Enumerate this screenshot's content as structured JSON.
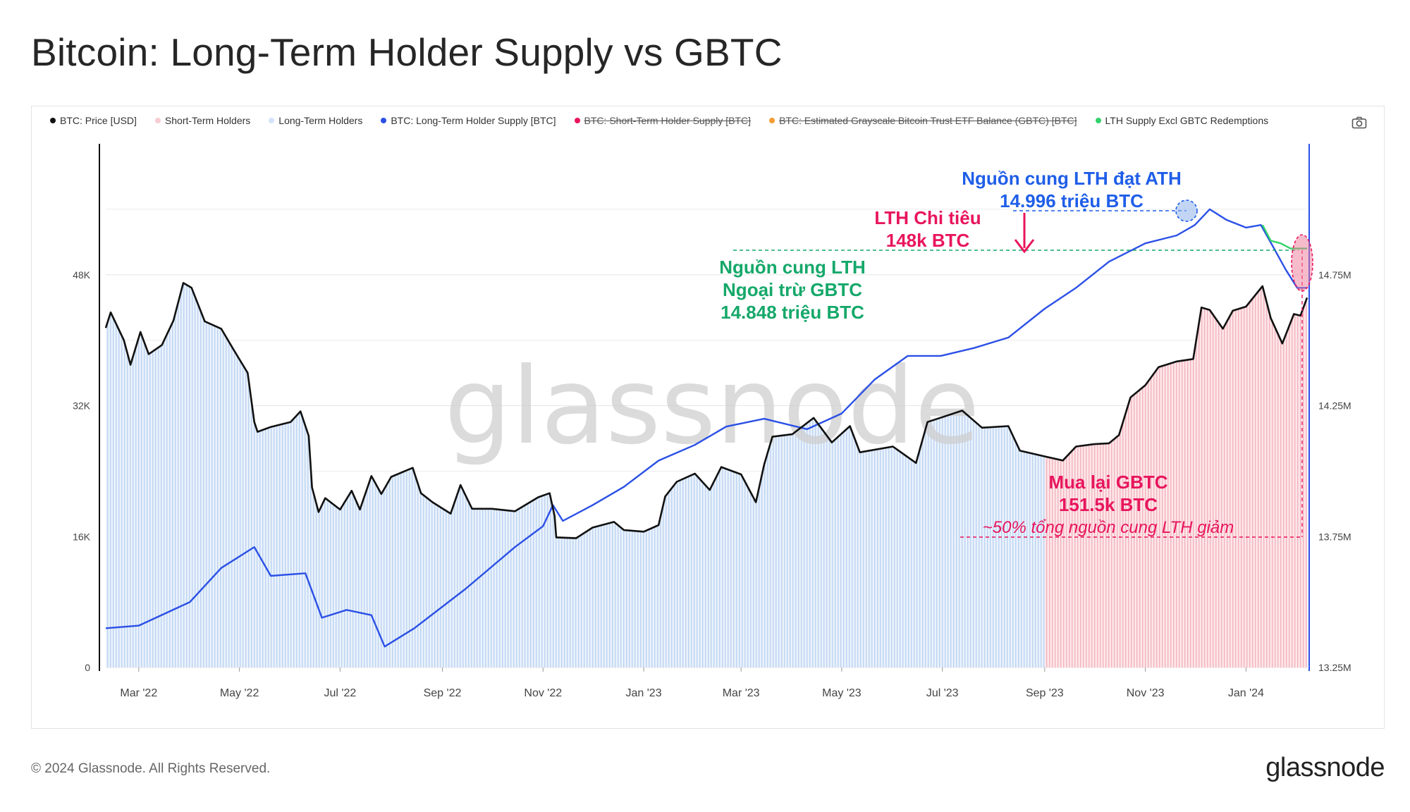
{
  "title": "Bitcoin: Long-Term Holder Supply vs GBTC",
  "footer": {
    "copyright": "© 2024 Glassnode. All Rights Reserved.",
    "brand": "glassnode"
  },
  "watermark": "glassnode",
  "icons": {
    "camera": "camera-icon"
  },
  "colors": {
    "price": "#111111",
    "lth_supply": "#2b50e6",
    "lth_excl_gbtc": "#32d36a",
    "sth_fill": "#f6cdd3",
    "lth_fill": "#d4e3f7",
    "annotation_blue": "#1f5ee8",
    "annotation_red": "#e8155d",
    "annotation_green": "#15a86a",
    "lth_spending_arrow": "#e8155d"
  },
  "legend": [
    {
      "label": "BTC: Price [USD]",
      "color": "#111111",
      "active": true
    },
    {
      "label": "Short-Term Holders",
      "color": "#f6cdd3",
      "active": true
    },
    {
      "label": "Long-Term Holders",
      "color": "#d4e3f7",
      "active": true
    },
    {
      "label": "BTC: Long-Term Holder Supply [BTC]",
      "color": "#2b50e6",
      "active": true
    },
    {
      "label": "BTC: Short-Term Holder Supply [BTC]",
      "color": "#e8155d",
      "active": false
    },
    {
      "label": "BTC: Estimated Grayscale Bitcoin Trust ETF Balance (GBTC) [BTC]",
      "color": "#f39c35",
      "active": false
    },
    {
      "label": "LTH Supply Excl GBTC Redemptions",
      "color": "#32d36a",
      "active": true
    }
  ],
  "annotations": {
    "ath_line1": "Nguồn cung LTH đạt ATH",
    "ath_line2": "14.996 triệu BTC",
    "spend_line1": "LTH Chi tiêu",
    "spend_line2": "148k BTC",
    "excl_line1": "Nguồn cung LTH",
    "excl_line2": "Ngoại trừ GBTC",
    "excl_line3": "14.848 triệu BTC",
    "gbtc_line1": "Mua lại GBTC",
    "gbtc_line2": "151.5k BTC",
    "gbtc_line3": "~50% tổng nguồn cung LTH giảm"
  },
  "chart_data": {
    "type": "line",
    "title": "Bitcoin: Long-Term Holder Supply vs GBTC",
    "x_ticks": [
      "Mar '22",
      "May '22",
      "Jul '22",
      "Sep '22",
      "Nov '22",
      "Jan '23",
      "Mar '23",
      "May '23",
      "Jul '23",
      "Sep '23",
      "Nov '23",
      "Jan '24"
    ],
    "y_left": {
      "ticks": [
        "0",
        "16K",
        "32K",
        "48K"
      ],
      "range": [
        0,
        64000
      ],
      "unit": "USD"
    },
    "y_right": {
      "ticks": [
        "13.25M",
        "13.75M",
        "14.25M",
        "14.75M"
      ],
      "range": [
        13.25,
        15.25
      ],
      "unit": "BTC (millions)"
    },
    "x_range": [
      "2022-02-09",
      "2024-02-07"
    ],
    "grid": true,
    "legend_position": "top",
    "regime_split": "2023-09-05",
    "series": [
      {
        "name": "BTC: Price [USD]",
        "axis": "left",
        "points": [
          [
            "2022-02-09",
            41500
          ],
          [
            "2022-02-12",
            43400
          ],
          [
            "2022-02-20",
            40000
          ],
          [
            "2022-02-24",
            37000
          ],
          [
            "2022-03-02",
            41000
          ],
          [
            "2022-03-07",
            38300
          ],
          [
            "2022-03-15",
            39400
          ],
          [
            "2022-03-22",
            42400
          ],
          [
            "2022-03-28",
            47000
          ],
          [
            "2022-04-02",
            46400
          ],
          [
            "2022-04-10",
            42300
          ],
          [
            "2022-04-20",
            41400
          ],
          [
            "2022-04-27",
            39000
          ],
          [
            "2022-05-06",
            36000
          ],
          [
            "2022-05-10",
            30000
          ],
          [
            "2022-05-12",
            28800
          ],
          [
            "2022-05-20",
            29400
          ],
          [
            "2022-06-01",
            30000
          ],
          [
            "2022-06-07",
            31300
          ],
          [
            "2022-06-12",
            28300
          ],
          [
            "2022-06-14",
            22000
          ],
          [
            "2022-06-18",
            19000
          ],
          [
            "2022-06-22",
            20700
          ],
          [
            "2022-07-01",
            19300
          ],
          [
            "2022-07-08",
            21600
          ],
          [
            "2022-07-13",
            19300
          ],
          [
            "2022-07-20",
            23400
          ],
          [
            "2022-07-26",
            21200
          ],
          [
            "2022-08-01",
            23300
          ],
          [
            "2022-08-14",
            24400
          ],
          [
            "2022-08-19",
            21300
          ],
          [
            "2022-08-26",
            20200
          ],
          [
            "2022-09-06",
            18800
          ],
          [
            "2022-09-12",
            22300
          ],
          [
            "2022-09-19",
            19400
          ],
          [
            "2022-10-01",
            19400
          ],
          [
            "2022-10-15",
            19100
          ],
          [
            "2022-10-29",
            20800
          ],
          [
            "2022-11-05",
            21300
          ],
          [
            "2022-11-08",
            18500
          ],
          [
            "2022-11-09",
            15900
          ],
          [
            "2022-11-21",
            15800
          ],
          [
            "2022-12-01",
            17100
          ],
          [
            "2022-12-14",
            17800
          ],
          [
            "2022-12-20",
            16800
          ],
          [
            "2023-01-01",
            16600
          ],
          [
            "2023-01-10",
            17400
          ],
          [
            "2023-01-14",
            20900
          ],
          [
            "2023-01-21",
            22700
          ],
          [
            "2023-02-01",
            23700
          ],
          [
            "2023-02-10",
            21700
          ],
          [
            "2023-02-17",
            24500
          ],
          [
            "2023-03-01",
            23600
          ],
          [
            "2023-03-10",
            20200
          ],
          [
            "2023-03-15",
            24800
          ],
          [
            "2023-03-20",
            28200
          ],
          [
            "2023-04-01",
            28500
          ],
          [
            "2023-04-14",
            30500
          ],
          [
            "2023-04-25",
            27500
          ],
          [
            "2023-05-06",
            29500
          ],
          [
            "2023-05-12",
            26300
          ],
          [
            "2023-06-01",
            27000
          ],
          [
            "2023-06-15",
            25000
          ],
          [
            "2023-06-22",
            30000
          ],
          [
            "2023-07-01",
            30600
          ],
          [
            "2023-07-13",
            31400
          ],
          [
            "2023-07-25",
            29300
          ],
          [
            "2023-08-10",
            29500
          ],
          [
            "2023-08-17",
            26500
          ],
          [
            "2023-09-01",
            25800
          ],
          [
            "2023-09-12",
            25300
          ],
          [
            "2023-09-20",
            27000
          ],
          [
            "2023-10-01",
            27300
          ],
          [
            "2023-10-10",
            27400
          ],
          [
            "2023-10-16",
            28400
          ],
          [
            "2023-10-23",
            33000
          ],
          [
            "2023-11-01",
            34500
          ],
          [
            "2023-11-09",
            36700
          ],
          [
            "2023-11-20",
            37400
          ],
          [
            "2023-11-30",
            37700
          ],
          [
            "2023-12-05",
            44000
          ],
          [
            "2023-12-10",
            43700
          ],
          [
            "2023-12-18",
            41400
          ],
          [
            "2023-12-24",
            43600
          ],
          [
            "2024-01-01",
            44100
          ],
          [
            "2024-01-11",
            46600
          ],
          [
            "2024-01-16",
            42700
          ],
          [
            "2024-01-23",
            39600
          ],
          [
            "2024-01-30",
            43200
          ],
          [
            "2024-02-03",
            43000
          ],
          [
            "2024-02-07",
            45200
          ]
        ]
      },
      {
        "name": "BTC: Long-Term Holder Supply [BTC]",
        "axis": "right",
        "points": [
          [
            "2022-02-09",
            13.4
          ],
          [
            "2022-03-01",
            13.41
          ],
          [
            "2022-04-01",
            13.5
          ],
          [
            "2022-04-20",
            13.63
          ],
          [
            "2022-05-10",
            13.71
          ],
          [
            "2022-05-20",
            13.6
          ],
          [
            "2022-06-10",
            13.61
          ],
          [
            "2022-06-20",
            13.44
          ],
          [
            "2022-07-05",
            13.47
          ],
          [
            "2022-07-20",
            13.45
          ],
          [
            "2022-07-28",
            13.33
          ],
          [
            "2022-08-15",
            13.4
          ],
          [
            "2022-09-15",
            13.55
          ],
          [
            "2022-10-15",
            13.71
          ],
          [
            "2022-11-01",
            13.79
          ],
          [
            "2022-11-07",
            13.87
          ],
          [
            "2022-11-13",
            13.81
          ],
          [
            "2022-12-01",
            13.87
          ],
          [
            "2022-12-20",
            13.94
          ],
          [
            "2023-01-10",
            14.04
          ],
          [
            "2023-02-01",
            14.1
          ],
          [
            "2023-02-20",
            14.17
          ],
          [
            "2023-03-15",
            14.2
          ],
          [
            "2023-04-10",
            14.16
          ],
          [
            "2023-05-01",
            14.22
          ],
          [
            "2023-05-21",
            14.35
          ],
          [
            "2023-06-10",
            14.44
          ],
          [
            "2023-06-30",
            14.44
          ],
          [
            "2023-07-20",
            14.47
          ],
          [
            "2023-08-10",
            14.51
          ],
          [
            "2023-09-01",
            14.62
          ],
          [
            "2023-09-20",
            14.7
          ],
          [
            "2023-10-10",
            14.8
          ],
          [
            "2023-11-01",
            14.87
          ],
          [
            "2023-11-20",
            14.9
          ],
          [
            "2023-12-01",
            14.94
          ],
          [
            "2023-12-10",
            15.0
          ],
          [
            "2023-12-20",
            14.96
          ],
          [
            "2024-01-01",
            14.93
          ],
          [
            "2024-01-10",
            14.94
          ],
          [
            "2024-01-18",
            14.85
          ],
          [
            "2024-01-25",
            14.77
          ],
          [
            "2024-02-01",
            14.7
          ],
          [
            "2024-02-07",
            14.7
          ]
        ]
      },
      {
        "name": "LTH Supply Excl GBTC Redemptions",
        "axis": "right",
        "points": [
          [
            "2024-01-11",
            14.94
          ],
          [
            "2024-01-16",
            14.88
          ],
          [
            "2024-01-22",
            14.87
          ],
          [
            "2024-01-28",
            14.85
          ],
          [
            "2024-02-03",
            14.85
          ],
          [
            "2024-02-07",
            14.85
          ]
        ]
      }
    ]
  }
}
